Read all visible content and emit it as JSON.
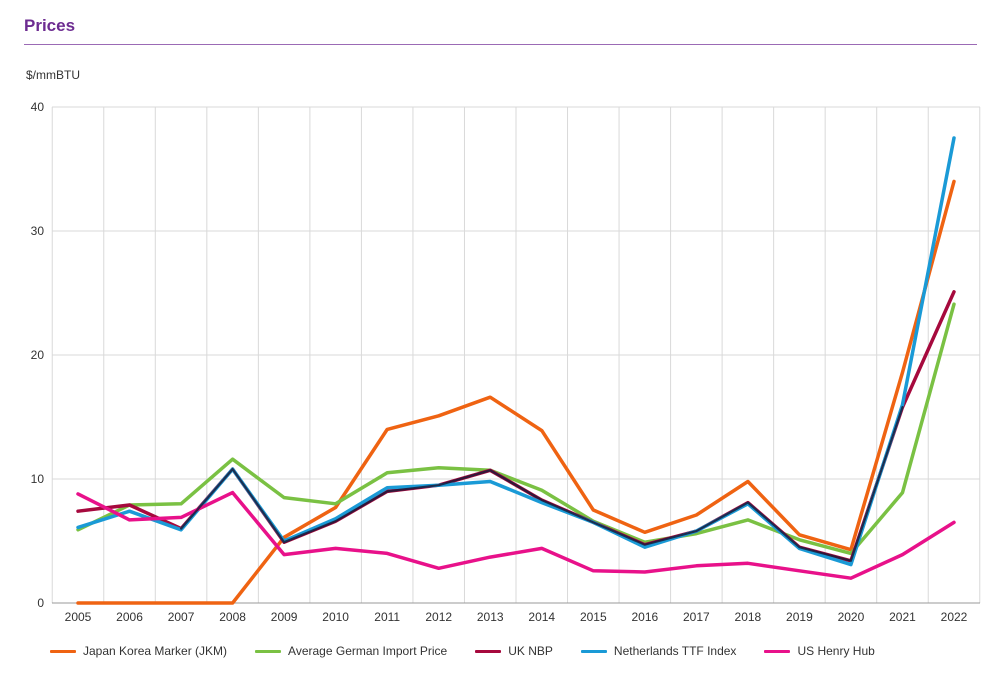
{
  "header": {
    "title": "Prices"
  },
  "chart_data": {
    "type": "line",
    "title": "Prices",
    "ylabel": "$/mmBTU",
    "xlabel": "",
    "ylim": [
      0,
      40
    ],
    "yticks": [
      0,
      10,
      20,
      30,
      40
    ],
    "grid": true,
    "legend_position": "bottom",
    "categories": [
      "2005",
      "2006",
      "2007",
      "2008",
      "2009",
      "2010",
      "2011",
      "2012",
      "2013",
      "2014",
      "2015",
      "2016",
      "2017",
      "2018",
      "2019",
      "2020",
      "2021",
      "2022"
    ],
    "series": [
      {
        "name": "Japan Korea Marker (JKM)",
        "color": "#ef6312",
        "values": [
          0,
          0,
          0,
          0,
          5.3,
          7.7,
          14.0,
          15.1,
          16.6,
          13.9,
          7.5,
          5.7,
          7.1,
          9.8,
          5.5,
          4.3,
          18.6,
          34.0
        ]
      },
      {
        "name": "Average German Import Price",
        "color": "#7ac143",
        "values": [
          5.9,
          7.9,
          8.0,
          11.6,
          8.5,
          8.0,
          10.5,
          10.9,
          10.7,
          9.1,
          6.6,
          4.9,
          5.6,
          6.7,
          5.1,
          4.0,
          8.9,
          24.1
        ]
      },
      {
        "name": "UK NBP",
        "color": "#a6093d",
        "values": [
          7.4,
          7.9,
          6.0,
          10.8,
          4.9,
          6.6,
          9.0,
          9.5,
          10.7,
          8.3,
          6.5,
          4.7,
          5.8,
          8.1,
          4.5,
          3.4,
          15.8,
          25.1
        ]
      },
      {
        "name": "Netherlands TTF Index",
        "color": "#1a9ad6",
        "values": [
          6.1,
          7.4,
          5.9,
          10.8,
          5.0,
          6.8,
          9.3,
          9.5,
          9.8,
          8.1,
          6.5,
          4.5,
          5.8,
          8.0,
          4.4,
          3.1,
          16.0,
          37.5
        ]
      },
      {
        "name": "US Henry Hub",
        "color": "#e8118a",
        "values": [
          8.8,
          6.7,
          6.9,
          8.9,
          3.9,
          4.4,
          4.0,
          2.8,
          3.7,
          4.4,
          2.6,
          2.5,
          3.0,
          3.2,
          2.6,
          2.0,
          3.9,
          6.5
        ]
      }
    ],
    "overlay": {
      "color": "#1b1b3a",
      "from_index": 3,
      "values": [
        7.4,
        7.9,
        6.0,
        10.8,
        4.9,
        6.6,
        9.0,
        9.5,
        10.7,
        8.3,
        6.5,
        4.7,
        5.8,
        8.1,
        4.5,
        3.4,
        15.8,
        25.1
      ]
    },
    "grid_color": "#d9d9d9"
  }
}
